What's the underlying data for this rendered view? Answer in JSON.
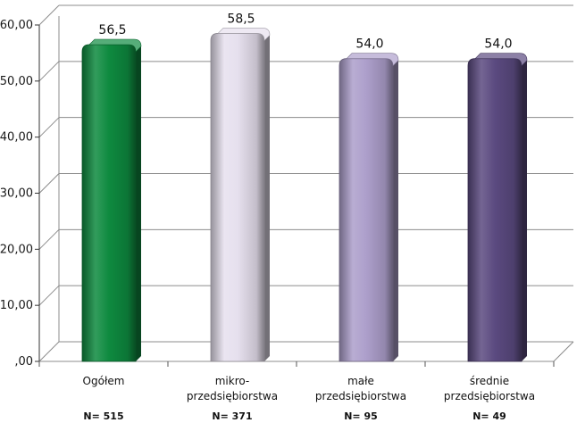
{
  "chart_data": {
    "type": "bar",
    "title": "",
    "xlabel": "",
    "ylabel": "",
    "ylim": [
      0,
      60
    ],
    "y_ticks": [
      ",00",
      "10,00",
      "20,00",
      "30,00",
      "40,00",
      "50,00",
      "60,00"
    ],
    "grid": true,
    "categories": [
      {
        "lines": [
          "Ogółem"
        ],
        "n_label": "N= 515"
      },
      {
        "lines": [
          "mikro-",
          "przedsiębiorstwa"
        ],
        "n_label": "N= 371"
      },
      {
        "lines": [
          "małe",
          "przedsiębiorstwa"
        ],
        "n_label": "N= 95"
      },
      {
        "lines": [
          "średnie",
          "przedsiębiorstwa"
        ],
        "n_label": "N= 49"
      }
    ],
    "values": [
      56.5,
      58.5,
      54.0,
      54.0
    ],
    "value_labels": [
      "56,5",
      "58,5",
      "54,0",
      "54,0"
    ],
    "colors": [
      "#0e8a3f",
      "#e6e0ee",
      "#ad9fcb",
      "#5b4a80"
    ]
  }
}
